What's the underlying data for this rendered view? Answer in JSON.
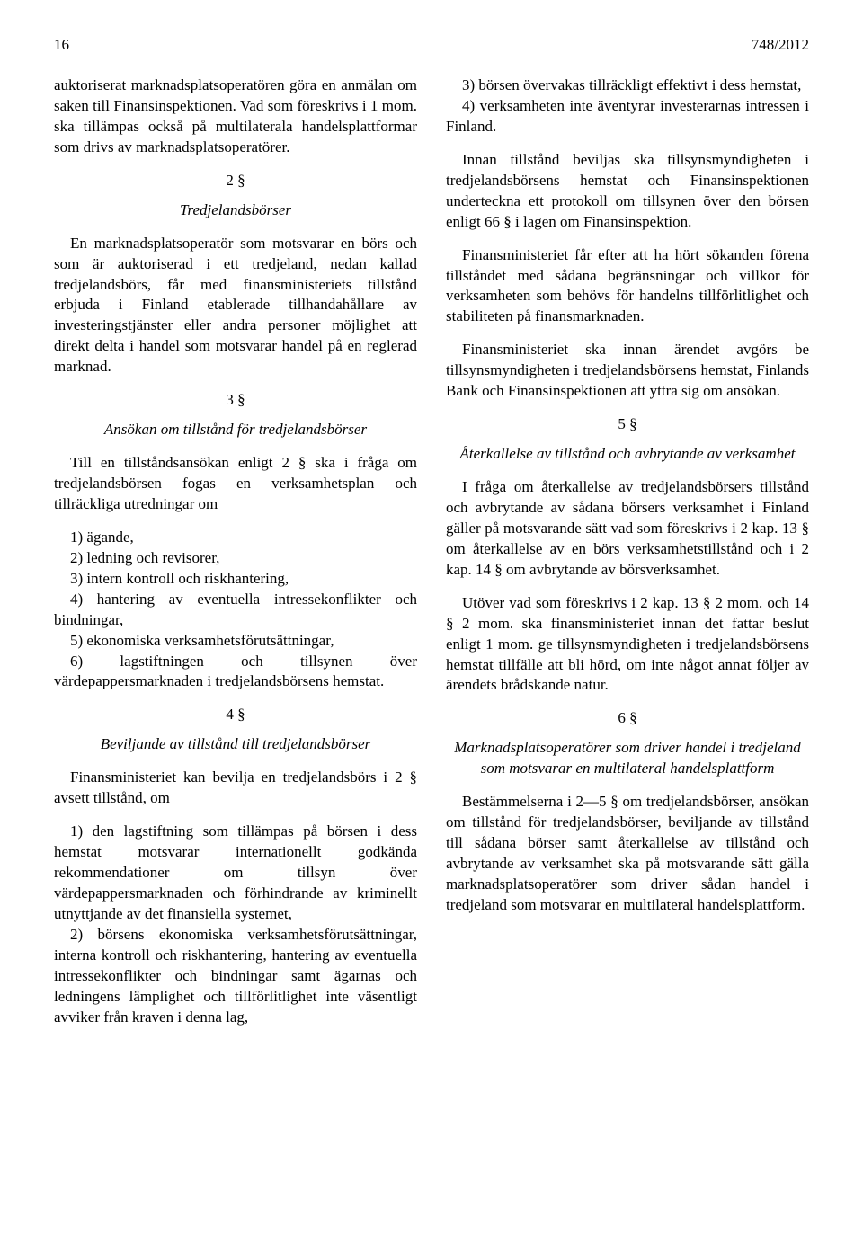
{
  "header": {
    "page_number": "16",
    "doc_ref": "748/2012"
  },
  "left": {
    "p1": "auktoriserat marknadsplatsoperatören göra en anmälan om saken till Finansinspektionen. Vad som föreskrivs i 1 mom. ska tillämpas också på multilaterala handelsplattformar som drivs av marknadsplatsoperatörer.",
    "s2_num": "2 §",
    "s2_title": "Tredjelandsbörser",
    "s2_p1": "En marknadsplatsoperatör som motsvarar en börs och som är auktoriserad i ett tredjeland, nedan kallad tredjelandsbörs, får med finansministeriets tillstånd erbjuda i Finland etablerade tillhandahållare av investeringstjänster eller andra personer möjlighet att direkt delta i handel som motsvarar handel på en reglerad marknad.",
    "s3_num": "3 §",
    "s3_title": "Ansökan om tillstånd för tredjelandsbörser",
    "s3_p1": "Till en tillståndsansökan enligt 2 § ska i fråga om tredjelandsbörsen fogas en verksamhetsplan och tillräckliga utredningar om",
    "s3_items": [
      "1) ägande,",
      "2) ledning och revisorer,",
      "3) intern kontroll och riskhantering,",
      "4) hantering av eventuella intressekonflikter och bindningar,",
      "5) ekonomiska verksamhetsförutsättningar,",
      "6) lagstiftningen och tillsynen över värdepappersmarknaden i tredjelandsbörsens hemstat."
    ],
    "s4_num": "4 §",
    "s4_title": "Beviljande av tillstånd till tredjelandsbörser",
    "s4_p1": "Finansministeriet kan bevilja en tredjelandsbörs i 2 § avsett tillstånd, om",
    "s4_items": [
      "1) den lagstiftning som tillämpas på börsen i dess hemstat motsvarar internationellt godkända rekommendationer om tillsyn över värdepappersmarknaden och förhindrande av kriminellt utnyttjande av det finansiella systemet,",
      "2) börsens ekonomiska verksamhetsförutsättningar, interna kontroll och riskhantering, hantering av eventuella intressekonflikter och bindningar samt ägarnas och ledningens lämplighet och tillförlitlighet inte väsentligt avviker från kraven i denna lag,"
    ]
  },
  "right": {
    "s4_items_cont": [
      "3) börsen övervakas tillräckligt effektivt i dess hemstat,",
      "4) verksamheten inte äventyrar investerarnas intressen i Finland."
    ],
    "s4_p2": "Innan tillstånd beviljas ska tillsynsmyndigheten i tredjelandsbörsens hemstat och Finansinspektionen underteckna ett protokoll om tillsynen över den börsen enligt 66 § i lagen om Finansinspektion.",
    "s4_p3": "Finansministeriet får efter att ha hört sökanden förena tillståndet med sådana begränsningar och villkor för verksamheten som behövs för handelns tillförlitlighet och stabiliteten på finansmarknaden.",
    "s4_p4": "Finansministeriet ska innan ärendet avgörs be tillsynsmyndigheten i tredjelandsbörsens hemstat, Finlands Bank och Finansinspektionen att yttra sig om ansökan.",
    "s5_num": "5 §",
    "s5_title": "Återkallelse av tillstånd och avbrytande av verksamhet",
    "s5_p1": "I fråga om återkallelse av tredjelandsbörsers tillstånd och avbrytande av sådana börsers verksamhet i Finland gäller på motsvarande sätt vad som föreskrivs i 2 kap. 13 § om återkallelse av en börs verksamhetstillstånd och i 2 kap. 14 § om avbrytande av börsverksamhet.",
    "s5_p2": "Utöver vad som föreskrivs i 2 kap. 13 § 2 mom. och 14 § 2 mom. ska finansministeriet innan det fattar beslut enligt 1 mom. ge tillsynsmyndigheten i tredjelandsbörsens hemstat tillfälle att bli hörd, om inte något annat följer av ärendets brådskande natur.",
    "s6_num": "6 §",
    "s6_title": "Marknadsplatsoperatörer som driver handel i tredjeland som motsvarar en multilateral handelsplattform",
    "s6_p1": "Bestämmelserna i 2—5 § om tredjelandsbörser, ansökan om tillstånd för tredjelandsbörser, beviljande av tillstånd till sådana börser samt återkallelse av tillstånd och avbrytande av verksamhet ska på motsvarande sätt gälla marknadsplatsoperatörer som driver sådan handel i tredjeland som motsvarar en multilateral handelsplattform."
  }
}
